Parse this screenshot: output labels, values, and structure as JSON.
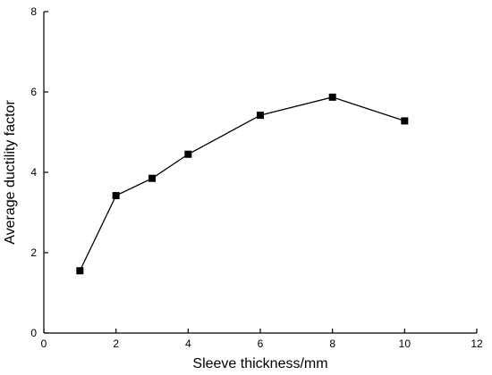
{
  "chart_data": {
    "type": "line",
    "title": "",
    "xlabel": "Sleeve thickness/mm",
    "ylabel": "Average ductility factor",
    "xlim": [
      0,
      12
    ],
    "ylim": [
      0,
      8
    ],
    "xticks": [
      0,
      2,
      4,
      6,
      8,
      10,
      12
    ],
    "yticks": [
      0,
      2,
      4,
      6,
      8
    ],
    "grid": false,
    "legend": "none",
    "marker": "square",
    "line_color": "#000000",
    "series": [
      {
        "x": [
          1,
          2,
          3,
          4,
          6,
          8,
          10
        ],
        "y": [
          1.55,
          3.42,
          3.85,
          4.45,
          5.42,
          5.87,
          5.28
        ]
      }
    ]
  }
}
